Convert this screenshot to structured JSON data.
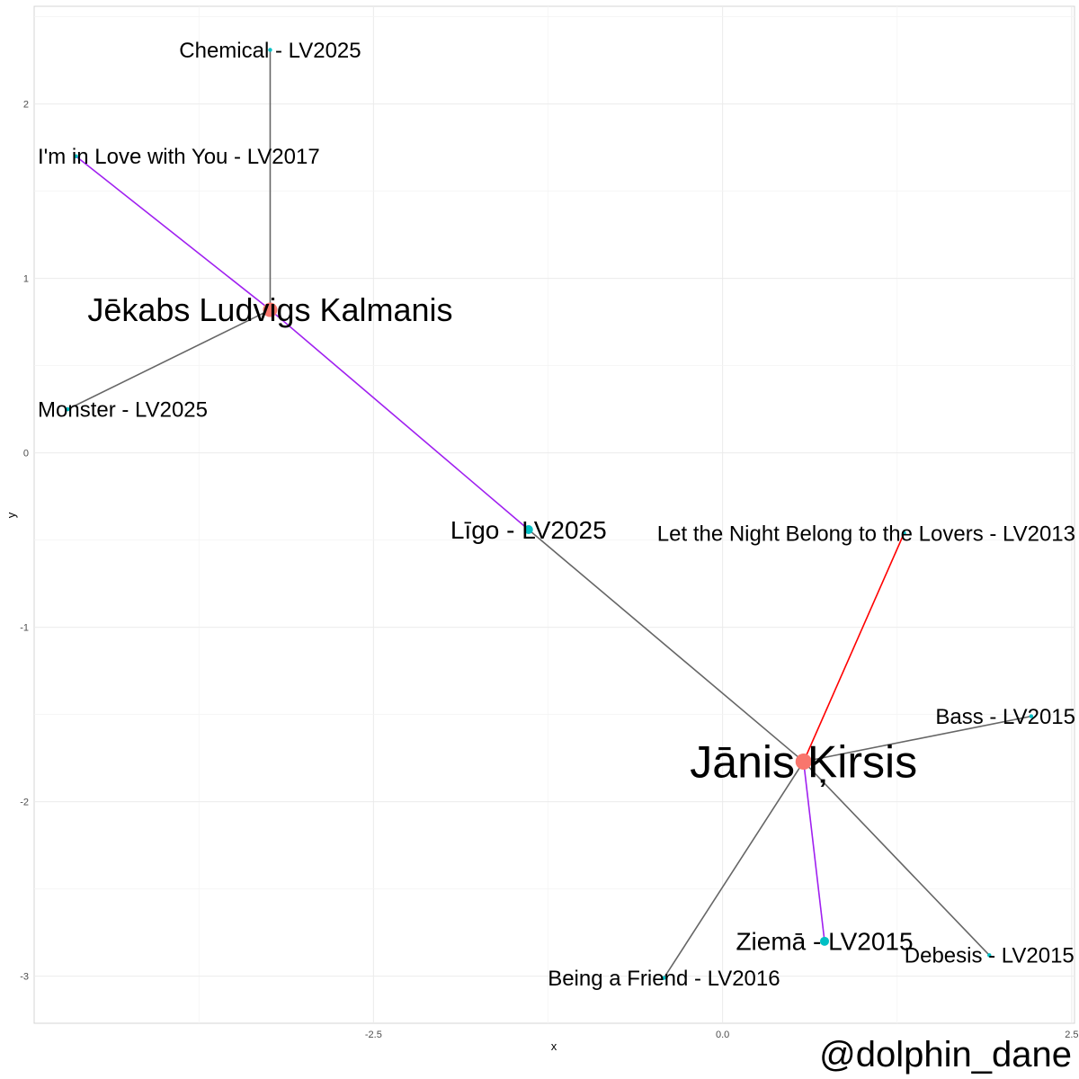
{
  "chart_data": {
    "type": "network",
    "xlabel": "x",
    "ylabel": "y",
    "xlim": [
      -4.93,
      2.52
    ],
    "ylim": [
      -3.27,
      2.56
    ],
    "x_ticks": [
      {
        "value": -2.5,
        "label": "-2.5"
      },
      {
        "value": 0.0,
        "label": "0.0"
      },
      {
        "value": 2.5,
        "label": "2.5"
      }
    ],
    "y_ticks": [
      {
        "value": 2,
        "label": "2"
      },
      {
        "value": 1,
        "label": "1"
      },
      {
        "value": 0,
        "label": "0"
      },
      {
        "value": -1,
        "label": "-1"
      },
      {
        "value": -2,
        "label": "-2"
      },
      {
        "value": -3,
        "label": "-3"
      }
    ],
    "grid": true,
    "colors": {
      "artist": "#f8766d",
      "song": "#00bfc4",
      "edge_default": "#666666",
      "edge_purple": "#a020f0",
      "edge_red": "#ff0000"
    },
    "nodes": [
      {
        "id": "jekabs",
        "label": "Jēkabs Ludvigs Kalmanis",
        "kind": "artist",
        "x": -3.24,
        "y": 0.82,
        "size": 8,
        "font": 36
      },
      {
        "id": "janis",
        "label": "Jānis Ķirsis",
        "kind": "artist",
        "x": 0.58,
        "y": -1.77,
        "size": 9,
        "font": 50
      },
      {
        "id": "chemical",
        "label": "Chemical - LV2025",
        "kind": "song",
        "x": -3.24,
        "y": 2.31,
        "size": 2.2,
        "font": 24
      },
      {
        "id": "love",
        "label": "I'm in Love with You - LV2017",
        "kind": "song",
        "x": -4.63,
        "y": 1.7,
        "size": 2.2,
        "font": 24
      },
      {
        "id": "monster",
        "label": "Monster - LV2025",
        "kind": "song",
        "x": -4.69,
        "y": 0.25,
        "size": 2.2,
        "font": 24
      },
      {
        "id": "ligo",
        "label": "Līgo - LV2025",
        "kind": "song",
        "x": -1.39,
        "y": -0.44,
        "size": 5,
        "font": 28
      },
      {
        "id": "night",
        "label": "Let the Night Belong to the Lovers - LV2013",
        "kind": "song",
        "x": 1.3,
        "y": -0.46,
        "size": 2.2,
        "font": 24
      },
      {
        "id": "bass",
        "label": "Bass - LV2015",
        "kind": "song",
        "x": 2.21,
        "y": -1.51,
        "size": 2.2,
        "font": 24
      },
      {
        "id": "ziema",
        "label": "Ziemā - LV2015",
        "kind": "song",
        "x": 0.73,
        "y": -2.8,
        "size": 5,
        "font": 28
      },
      {
        "id": "debesis",
        "label": "Debesis - LV2015",
        "kind": "song",
        "x": 1.91,
        "y": -2.88,
        "size": 2.2,
        "font": 24
      },
      {
        "id": "friend",
        "label": "Being a Friend - LV2016",
        "kind": "song",
        "x": -0.42,
        "y": -3.01,
        "size": 2.2,
        "font": 24
      }
    ],
    "edges": [
      {
        "from": "jekabs",
        "to": "chemical",
        "color": "edge_default"
      },
      {
        "from": "jekabs",
        "to": "love",
        "color": "edge_purple"
      },
      {
        "from": "jekabs",
        "to": "monster",
        "color": "edge_default"
      },
      {
        "from": "jekabs",
        "to": "ligo",
        "color": "edge_purple"
      },
      {
        "from": "ligo",
        "to": "janis",
        "color": "edge_default"
      },
      {
        "from": "janis",
        "to": "night",
        "color": "edge_red"
      },
      {
        "from": "janis",
        "to": "bass",
        "color": "edge_default"
      },
      {
        "from": "janis",
        "to": "ziema",
        "color": "edge_purple"
      },
      {
        "from": "janis",
        "to": "debesis",
        "color": "edge_default"
      },
      {
        "from": "janis",
        "to": "friend",
        "color": "edge_default"
      }
    ]
  },
  "credit": "@dolphin_dane"
}
